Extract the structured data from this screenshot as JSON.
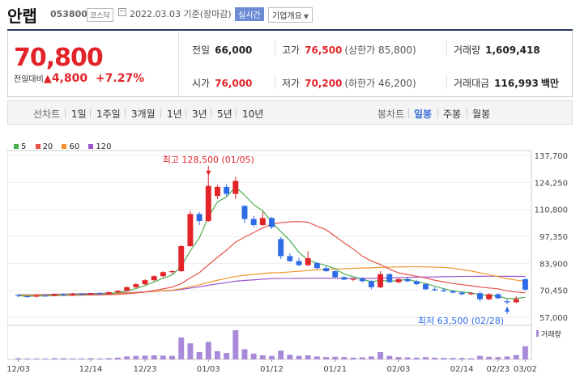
{
  "header": {
    "name": "안랩",
    "code": "053800",
    "market": "코스닥",
    "date": "2022.03.03",
    "basis": "기준(장마감)",
    "realtime_label": "실시간",
    "corp_label": "기업개요"
  },
  "quote": {
    "price": "70,800",
    "change_label": "전일대비",
    "change_amount": "4,800",
    "change_pct": "+7.27%",
    "prev_close_label": "전일",
    "prev_close": "66,000",
    "high_label": "고가",
    "high": "76,500",
    "upper_limit": "(상한가 85,800)",
    "volume_label": "거래량",
    "volume": "1,609,418",
    "open_label": "시가",
    "open": "76,000",
    "low_label": "저가",
    "low": "70,200",
    "lower_limit": "(하한가 46,200)",
    "amount_label": "거래대금",
    "amount": "116,993",
    "amount_unit": "백만"
  },
  "tabs": {
    "line_label": "선차트",
    "periods": [
      "1일",
      "1주일",
      "3개월",
      "1년",
      "3년",
      "5년",
      "10년"
    ],
    "candle_label": "봉차트",
    "candle_periods": [
      "일봉",
      "주봉",
      "월봉"
    ],
    "active_candle": "일봉"
  },
  "colors": {
    "up": "#e2242a",
    "down": "#2e6be6",
    "ma5": "#4caf50",
    "ma20": "#e8524a",
    "ma60": "#f0962e",
    "ma120": "#9b59d0",
    "volume": "#a98ad9"
  },
  "chart_data": {
    "type": "candlestick",
    "legend": [
      "5",
      "20",
      "60",
      "120"
    ],
    "ylim": [
      57000,
      137700
    ],
    "y_ticks": [
      "137,700",
      "124,250",
      "110,800",
      "97,350",
      "83,900",
      "70,450",
      "57,000"
    ],
    "x_ticks": [
      "12/03",
      "12/14",
      "12/23",
      "01/03",
      "01/12",
      "01/21",
      "02/03",
      "02/14",
      "02/23",
      "03/02"
    ],
    "annotation_high": "최고 128,500 (01/05)",
    "annotation_low": "최저 63,500 (02/28)",
    "volume_label": "거래량",
    "candles": [
      {
        "o": 68200,
        "h": 68500,
        "l": 67000,
        "c": 67800
      },
      {
        "o": 67500,
        "h": 68000,
        "l": 67000,
        "c": 67300
      },
      {
        "o": 67300,
        "h": 68200,
        "l": 66800,
        "c": 67900
      },
      {
        "o": 67900,
        "h": 68300,
        "l": 67200,
        "c": 67700
      },
      {
        "o": 67700,
        "h": 68800,
        "l": 67400,
        "c": 68500
      },
      {
        "o": 68500,
        "h": 69000,
        "l": 67800,
        "c": 68000
      },
      {
        "o": 68000,
        "h": 69100,
        "l": 67800,
        "c": 68800
      },
      {
        "o": 68800,
        "h": 69000,
        "l": 68000,
        "c": 68300
      },
      {
        "o": 68300,
        "h": 69200,
        "l": 68000,
        "c": 68900
      },
      {
        "o": 68900,
        "h": 69500,
        "l": 68300,
        "c": 68600
      },
      {
        "o": 68600,
        "h": 69800,
        "l": 68400,
        "c": 69500
      },
      {
        "o": 69500,
        "h": 70500,
        "l": 69000,
        "c": 70200
      },
      {
        "o": 70200,
        "h": 72500,
        "l": 70000,
        "c": 72000
      },
      {
        "o": 72000,
        "h": 74000,
        "l": 71500,
        "c": 73500
      },
      {
        "o": 73500,
        "h": 76000,
        "l": 73000,
        "c": 75500
      },
      {
        "o": 75500,
        "h": 78000,
        "l": 75000,
        "c": 77500
      },
      {
        "o": 77500,
        "h": 80000,
        "l": 77000,
        "c": 79500
      },
      {
        "o": 79500,
        "h": 80500,
        "l": 78500,
        "c": 80000
      },
      {
        "o": 80000,
        "h": 93000,
        "l": 79500,
        "c": 92500
      },
      {
        "o": 92500,
        "h": 110000,
        "l": 92000,
        "c": 108500
      },
      {
        "o": 108500,
        "h": 109500,
        "l": 103000,
        "c": 105000
      },
      {
        "o": 105000,
        "h": 128500,
        "l": 104500,
        "c": 122500
      },
      {
        "o": 117500,
        "h": 123000,
        "l": 116000,
        "c": 122000
      },
      {
        "o": 122000,
        "h": 123500,
        "l": 117500,
        "c": 118500
      },
      {
        "o": 118500,
        "h": 127000,
        "l": 116000,
        "c": 125000
      },
      {
        "o": 112500,
        "h": 113000,
        "l": 104000,
        "c": 106000
      },
      {
        "o": 106000,
        "h": 107500,
        "l": 102000,
        "c": 103000
      },
      {
        "o": 103000,
        "h": 109500,
        "l": 102500,
        "c": 106500
      },
      {
        "o": 106500,
        "h": 107000,
        "l": 101000,
        "c": 102000
      },
      {
        "o": 96000,
        "h": 97000,
        "l": 86000,
        "c": 87500
      },
      {
        "o": 87500,
        "h": 89000,
        "l": 84500,
        "c": 85000
      },
      {
        "o": 85000,
        "h": 86500,
        "l": 82500,
        "c": 83000
      },
      {
        "o": 83000,
        "h": 90000,
        "l": 82500,
        "c": 86500
      },
      {
        "o": 84000,
        "h": 84500,
        "l": 81000,
        "c": 81500
      },
      {
        "o": 81500,
        "h": 82500,
        "l": 79500,
        "c": 80000
      },
      {
        "o": 80000,
        "h": 80500,
        "l": 76500,
        "c": 77000
      },
      {
        "o": 77000,
        "h": 77500,
        "l": 75500,
        "c": 75800
      },
      {
        "o": 75800,
        "h": 76500,
        "l": 75000,
        "c": 76200
      },
      {
        "o": 76200,
        "h": 77000,
        "l": 74500,
        "c": 75000
      },
      {
        "o": 75000,
        "h": 75500,
        "l": 71000,
        "c": 72000
      },
      {
        "o": 72000,
        "h": 80000,
        "l": 71500,
        "c": 78500
      },
      {
        "o": 78500,
        "h": 79000,
        "l": 74000,
        "c": 74500
      },
      {
        "o": 74500,
        "h": 76500,
        "l": 74000,
        "c": 76000
      },
      {
        "o": 76000,
        "h": 77000,
        "l": 74500,
        "c": 75000
      },
      {
        "o": 75000,
        "h": 75500,
        "l": 73000,
        "c": 73500
      },
      {
        "o": 73500,
        "h": 74000,
        "l": 70500,
        "c": 71000
      },
      {
        "o": 71000,
        "h": 72000,
        "l": 70000,
        "c": 70500
      },
      {
        "o": 70500,
        "h": 71500,
        "l": 69500,
        "c": 70000
      },
      {
        "o": 70000,
        "h": 70500,
        "l": 69000,
        "c": 69300
      },
      {
        "o": 69300,
        "h": 70000,
        "l": 68000,
        "c": 68500
      },
      {
        "o": 68500,
        "h": 69500,
        "l": 68000,
        "c": 69000
      },
      {
        "o": 69000,
        "h": 69800,
        "l": 65000,
        "c": 66000
      },
      {
        "o": 66000,
        "h": 69000,
        "l": 65500,
        "c": 68500
      },
      {
        "o": 68500,
        "h": 69000,
        "l": 66000,
        "c": 66500
      },
      {
        "o": 65000,
        "h": 66000,
        "l": 63500,
        "c": 64500
      },
      {
        "o": 64500,
        "h": 67500,
        "l": 64000,
        "c": 66000
      },
      {
        "o": 76000,
        "h": 76500,
        "l": 70200,
        "c": 70800
      }
    ],
    "volumes": [
      0.04,
      0.03,
      0.03,
      0.03,
      0.04,
      0.04,
      0.03,
      0.03,
      0.04,
      0.03,
      0.04,
      0.06,
      0.1,
      0.12,
      0.13,
      0.14,
      0.13,
      0.12,
      0.75,
      0.55,
      0.25,
      0.6,
      0.28,
      0.22,
      1.0,
      0.35,
      0.2,
      0.14,
      0.12,
      0.3,
      0.16,
      0.12,
      0.14,
      0.1,
      0.08,
      0.09,
      0.08,
      0.06,
      0.07,
      0.1,
      0.25,
      0.12,
      0.08,
      0.07,
      0.06,
      0.08,
      0.06,
      0.05,
      0.05,
      0.05,
      0.04,
      0.12,
      0.09,
      0.08,
      0.1,
      0.15,
      0.45
    ]
  }
}
